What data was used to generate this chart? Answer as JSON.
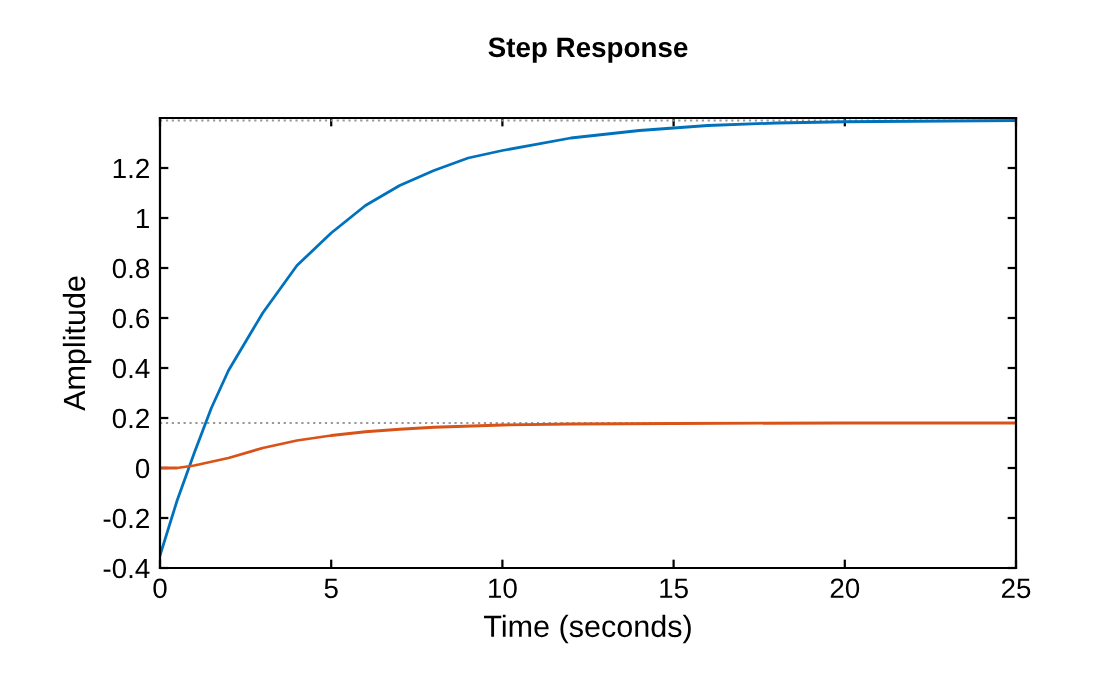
{
  "chart_data": {
    "type": "line",
    "title": "Step Response",
    "xlabel": "Time (seconds)",
    "ylabel": "Amplitude",
    "xlim": [
      0,
      25
    ],
    "xticks": [
      0,
      5,
      10,
      15,
      20,
      25
    ],
    "ylim": [
      -0.4,
      1.4
    ],
    "yticks": [
      -0.4,
      -0.2,
      0,
      0.2,
      0.4,
      0.6,
      0.8,
      1,
      1.2
    ],
    "grid": false,
    "line_style": "solid",
    "ref_lines": [
      {
        "axis": "y",
        "value": 1.39,
        "color": "#999999",
        "line_style": "dotted"
      },
      {
        "axis": "y",
        "value": 0.18,
        "color": "#999999",
        "line_style": "dotted"
      }
    ],
    "series": [
      {
        "color": "#0072bd",
        "x": [
          0,
          0.5,
          1,
          1.5,
          2,
          3,
          4,
          5,
          6,
          7,
          8,
          9,
          10,
          12,
          14,
          16,
          18,
          20,
          25
        ],
        "values": [
          -0.35,
          -0.13,
          0.06,
          0.24,
          0.39,
          0.62,
          0.81,
          0.94,
          1.05,
          1.13,
          1.19,
          1.24,
          1.27,
          1.32,
          1.35,
          1.37,
          1.38,
          1.385,
          1.39
        ]
      },
      {
        "color": "#d95319",
        "x": [
          0,
          0.5,
          1,
          2,
          3,
          4,
          5,
          6,
          7,
          8,
          10,
          12,
          15,
          20,
          25
        ],
        "values": [
          0,
          0.0,
          0.01,
          0.04,
          0.08,
          0.11,
          0.13,
          0.145,
          0.155,
          0.163,
          0.172,
          0.176,
          0.178,
          0.18,
          0.18
        ]
      }
    ]
  }
}
